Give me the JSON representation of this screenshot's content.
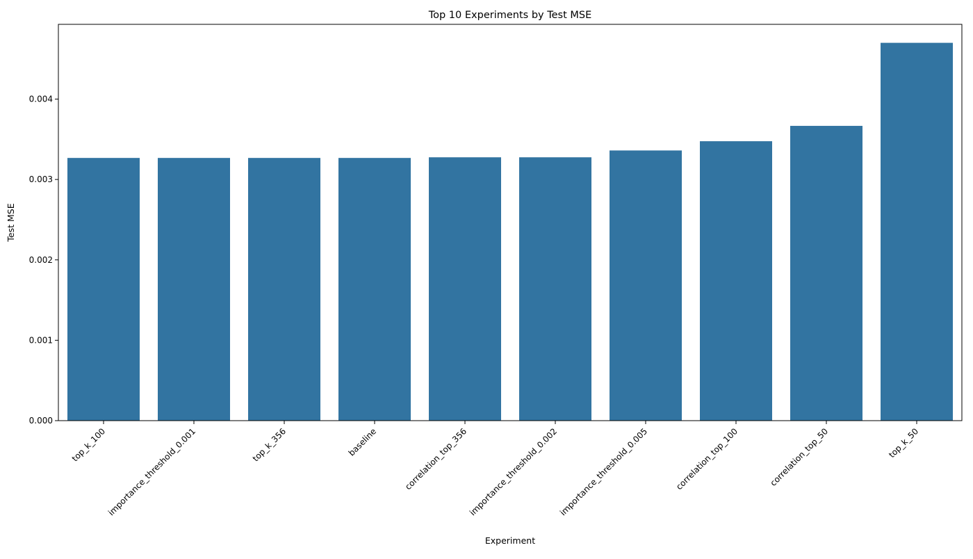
{
  "chart_data": {
    "type": "bar",
    "title": "Top 10 Experiments by Test MSE",
    "xlabel": "Experiment",
    "ylabel": "Test MSE",
    "categories": [
      "top_k_100",
      "importance_threshold_0.001",
      "top_k_356",
      "baseline",
      "correlation_top_356",
      "importance_threshold_0.002",
      "importance_threshold_0.005",
      "correlation_top_100",
      "correlation_top_50",
      "top_k_50"
    ],
    "values": [
      0.003268,
      0.003268,
      0.003268,
      0.003268,
      0.003276,
      0.003276,
      0.003361,
      0.003476,
      0.003667,
      0.0047
    ],
    "ylim": [
      0,
      0.00493
    ],
    "yticks": [
      0.0,
      0.001,
      0.002,
      0.003,
      0.004
    ],
    "ytick_labels": [
      "0.000",
      "0.001",
      "0.002",
      "0.003",
      "0.004"
    ],
    "bar_color": "#3274a1",
    "grid": false,
    "legend": "none"
  }
}
